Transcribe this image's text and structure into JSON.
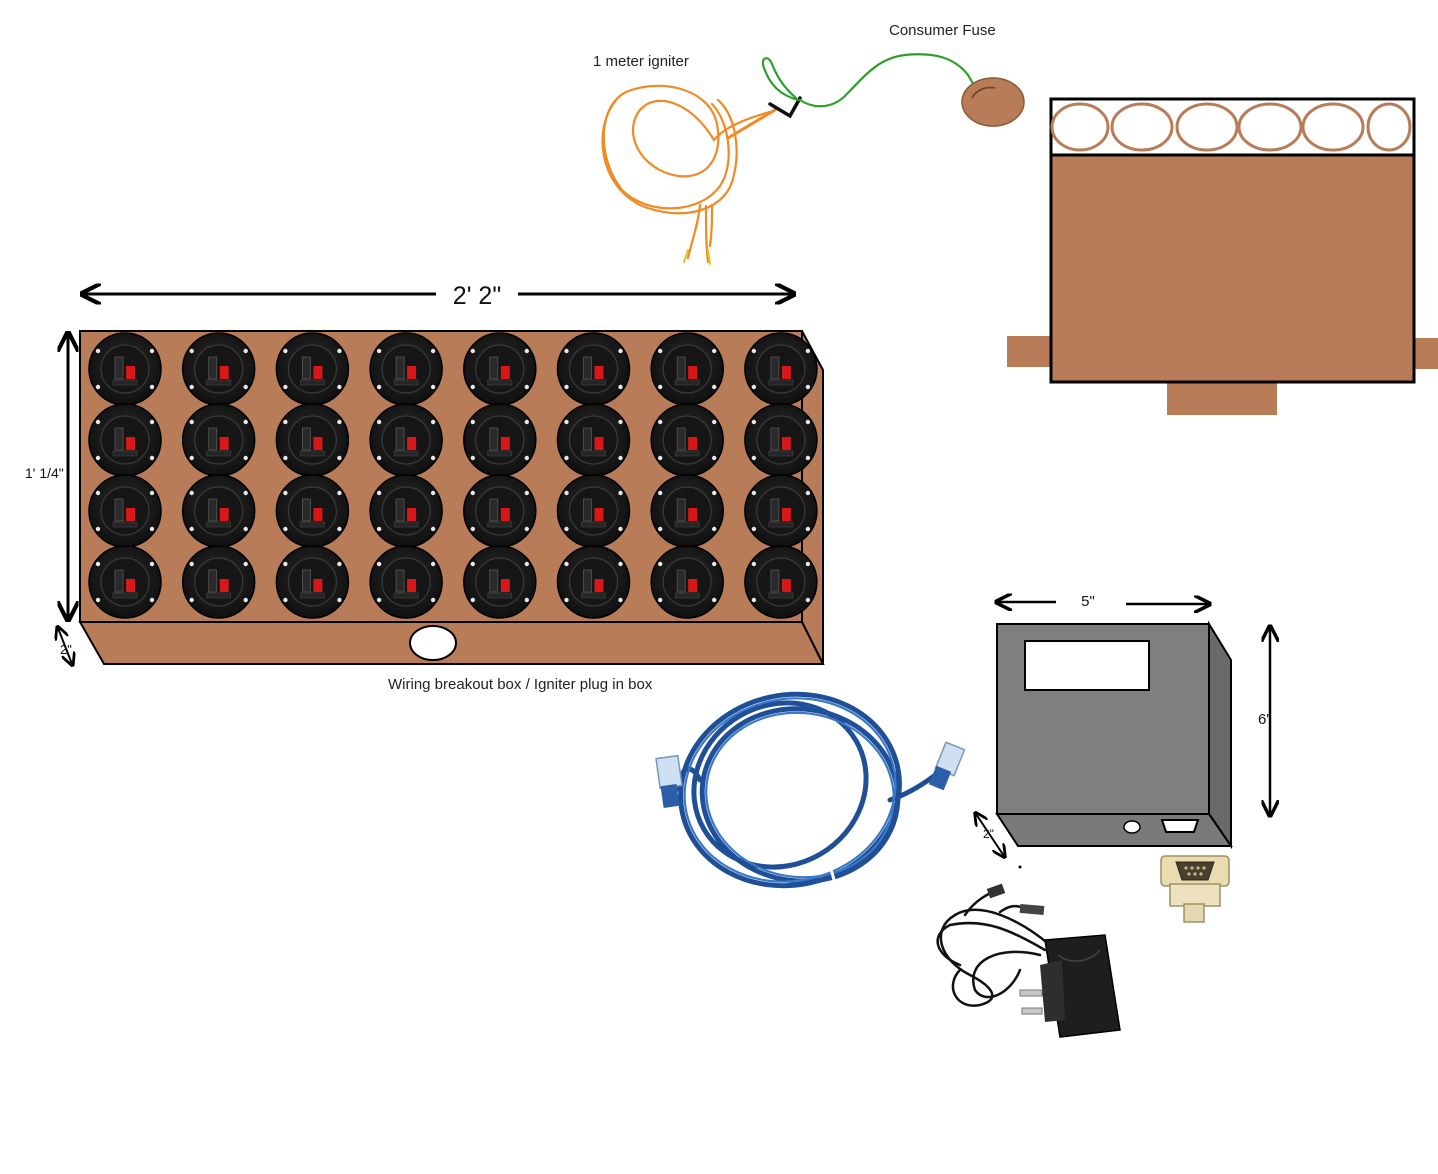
{
  "labels": {
    "igniter": "1 meter igniter",
    "fuse": "Consumer Fuse",
    "breakout_caption": "Wiring breakout box / Igniter plug in box"
  },
  "dimensions": {
    "breakout_width": "2' 2\"",
    "breakout_height": "1' 1/4\"",
    "breakout_depth": "2\"",
    "controller_width": "5\"",
    "controller_height": "6\"",
    "controller_depth": "2\""
  },
  "breakout_box": {
    "rows": 4,
    "cols": 8,
    "colors": {
      "wood": "#b87c58",
      "terminal": "#1c1c1c",
      "red_clip": "#d81818"
    }
  },
  "mortar_rack": {
    "tubes": 6,
    "colors": {
      "wood": "#b87c58"
    }
  },
  "controller_box": {
    "colors": {
      "body": "#7f7f7f",
      "side": "#6a6a6a"
    }
  },
  "icons": [
    "igniter-wire-icon",
    "fuse-icon",
    "ethernet-cable-icon",
    "db9-connector-icon",
    "power-adapter-icon"
  ]
}
